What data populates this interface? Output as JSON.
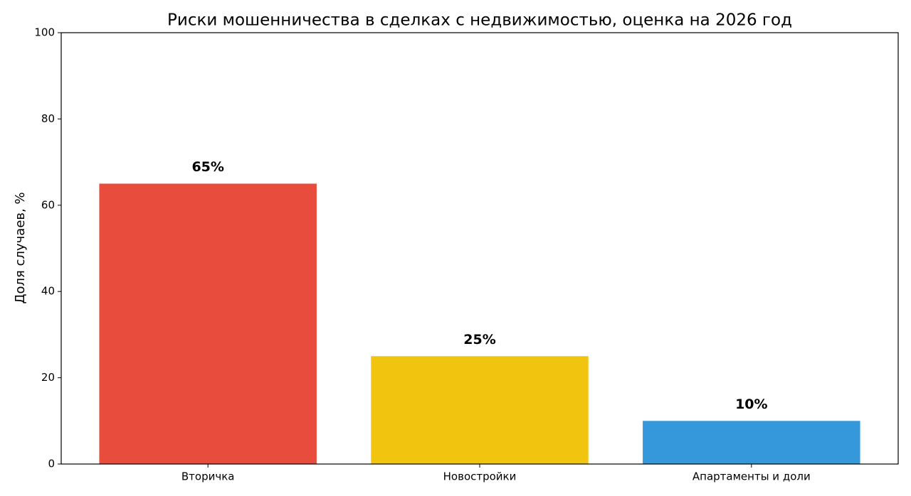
{
  "chart_data": {
    "type": "bar",
    "title": "Риски мошенничества в сделках с недвижимостью, оценка на 2026 год",
    "y_label": "Доля случаев, %",
    "categories": [
      "Вторичка",
      "Новостройки",
      "Апартаменты и доли"
    ],
    "values": [
      65,
      25,
      10
    ],
    "value_labels": [
      "65%",
      "25%",
      "10%"
    ],
    "colors": [
      "#e74c3c",
      "#f1c40f",
      "#3498db"
    ],
    "ylim": [
      0,
      100
    ],
    "yticks": [
      0,
      20,
      40,
      60,
      80,
      100
    ],
    "grid": false
  }
}
